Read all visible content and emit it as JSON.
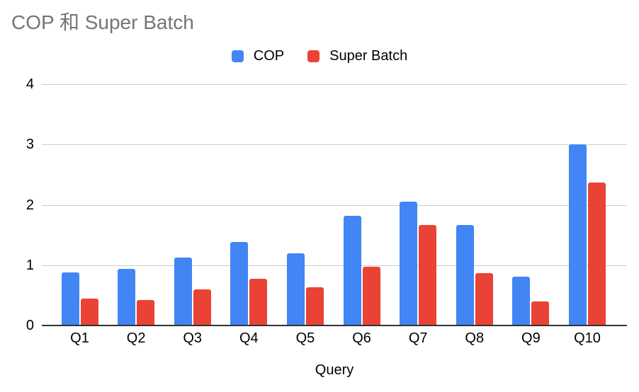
{
  "chart_data": {
    "type": "bar",
    "title": "COP 和 Super Batch",
    "xlabel": "Query",
    "ylabel": "",
    "categories": [
      "Q1",
      "Q2",
      "Q3",
      "Q4",
      "Q5",
      "Q6",
      "Q7",
      "Q8",
      "Q9",
      "Q10"
    ],
    "series": [
      {
        "name": "COP",
        "color": "#4285F4",
        "values": [
          0.88,
          0.94,
          1.13,
          1.38,
          1.2,
          1.82,
          2.05,
          1.67,
          0.81,
          3.0
        ]
      },
      {
        "name": "Super Batch",
        "color": "#EA4335",
        "values": [
          0.45,
          0.42,
          0.6,
          0.78,
          0.63,
          0.97,
          1.67,
          0.87,
          0.4,
          2.37
        ]
      }
    ],
    "y_ticks": [
      0,
      1,
      2,
      3,
      4
    ],
    "ylim": [
      0,
      4
    ],
    "grid": true,
    "legend_position": "top"
  },
  "colors": {
    "background": "#ffffff",
    "title_text": "#757575",
    "axis_text": "#000000",
    "gridline": "#cccccc",
    "axis_line": "#333333",
    "series_blue": "#4285F4",
    "series_red": "#EA4335"
  }
}
